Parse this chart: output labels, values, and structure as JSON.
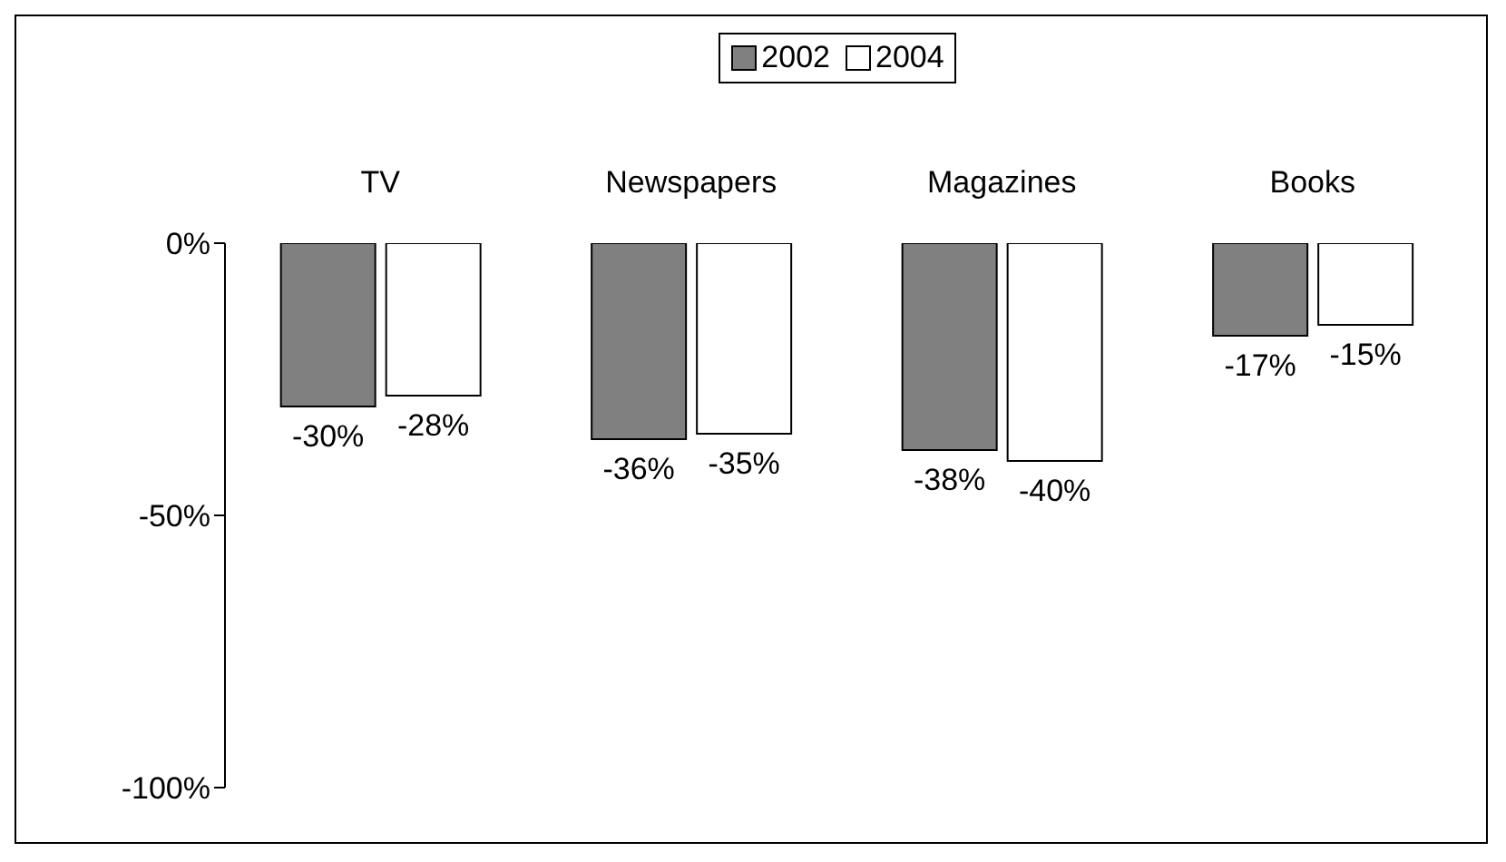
{
  "chart_data": {
    "type": "bar",
    "categories": [
      "TV",
      "Newspapers",
      "Magazines",
      "Books"
    ],
    "series": [
      {
        "name": "2002",
        "color": "#808080",
        "values": [
          -30,
          -36,
          -38,
          -17
        ],
        "value_labels": [
          "-30%",
          "-36%",
          "-38%",
          "-17%"
        ]
      },
      {
        "name": "2004",
        "color": "#ffffff",
        "values": [
          -28,
          -35,
          -40,
          -15
        ],
        "value_labels": [
          "-28%",
          "-35%",
          "-40%",
          "-15%"
        ]
      }
    ],
    "ylim": [
      -100,
      0
    ],
    "yticks": [
      {
        "value": 0,
        "label": "0%"
      },
      {
        "value": -50,
        "label": "-50%"
      },
      {
        "value": -100,
        "label": "-100%"
      }
    ],
    "grid": false,
    "legend": "top"
  }
}
